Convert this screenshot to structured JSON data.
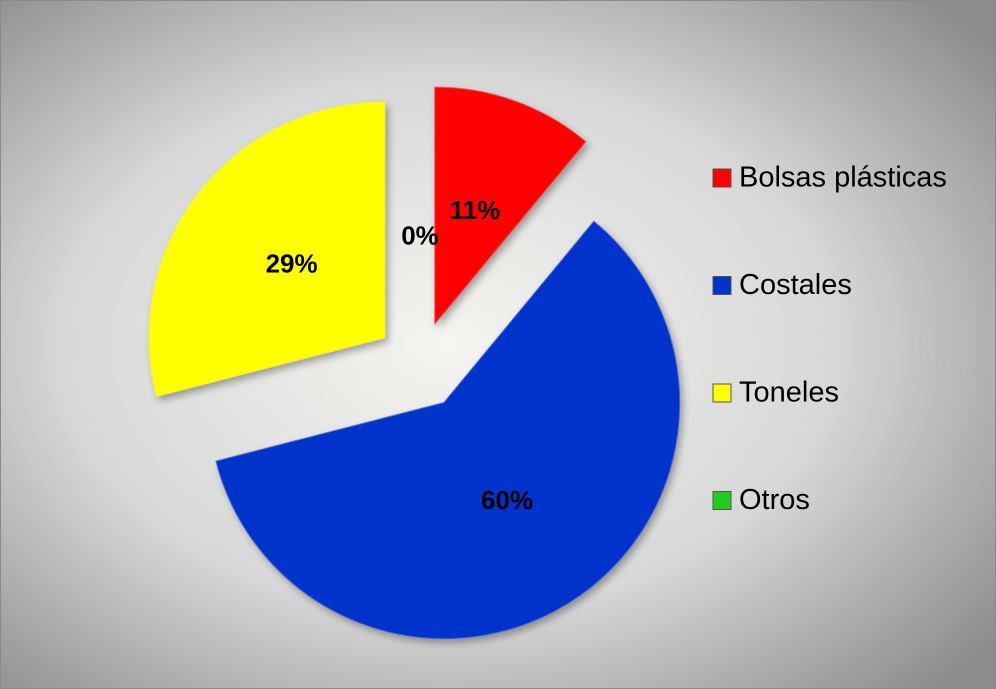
{
  "chart_data": {
    "type": "pie",
    "categories": [
      "Bolsas plásticas",
      "Costales",
      "Toneles",
      "Otros"
    ],
    "values": [
      11,
      60,
      29,
      0
    ],
    "value_labels": [
      "11%",
      "60%",
      "29%",
      "0%"
    ],
    "colors": [
      "#ff0000",
      "#0033cc",
      "#ffff00",
      "#22cc22"
    ],
    "legend": "right"
  }
}
